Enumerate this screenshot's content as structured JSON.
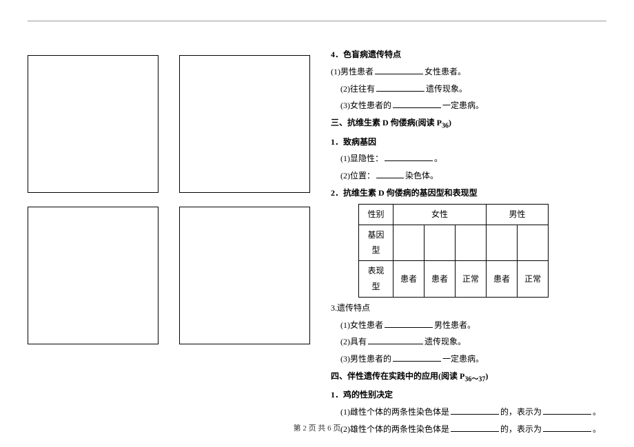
{
  "section4": {
    "title": "4．色盲病遗传特点",
    "items": [
      {
        "pre": "(1)男性患者",
        "post": "女性患者。"
      },
      {
        "pre": "(2)往往有",
        "post": "遗传现象。"
      },
      {
        "pre": "(3)女性患者的",
        "post": "一定患病。"
      }
    ]
  },
  "sectionSan": {
    "title_pre": "三、抗维生素 D 佝偻病(阅读 P",
    "title_sub": "36",
    "title_post": ")"
  },
  "sub1": {
    "title": "1．致病基因",
    "a_pre": "(1)显隐性：",
    "a_post": "。",
    "b_pre": "(2)位置：",
    "b_post": "染色体。"
  },
  "sub2": {
    "title": "2．抗维生素 D 佝偻病的基因型和表现型",
    "table": {
      "headers": [
        "性别",
        "女性",
        "男性"
      ],
      "row_geno_label": "基因型",
      "row_pheno_label": "表现型",
      "pheno_cells": [
        "患者",
        "患者",
        "正常",
        "患者",
        "正常"
      ]
    }
  },
  "sub3": {
    "title": "3.遗传特点",
    "items": [
      {
        "pre": "(1)女性患者",
        "post": "男性患者。"
      },
      {
        "pre": "(2)具有",
        "post": "遗传现象。"
      },
      {
        "pre": "(3)男性患者的",
        "post": "一定患病。"
      }
    ]
  },
  "sectionSi": {
    "title_pre": "四、伴性遗传在实践中的应用(阅读 P",
    "title_sub": "36～37",
    "title_post": ")"
  },
  "sub4": {
    "title": "1．鸡的性别决定",
    "a_pre": "(1)雌性个体的两条性染色体是",
    "a_mid": "的，表示为",
    "a_post": "。",
    "b_pre": "(2)雄性个体的两条性染色体是",
    "b_mid": "的，表示为",
    "b_post": "。"
  },
  "footer": "第 2 页 共 6 页"
}
